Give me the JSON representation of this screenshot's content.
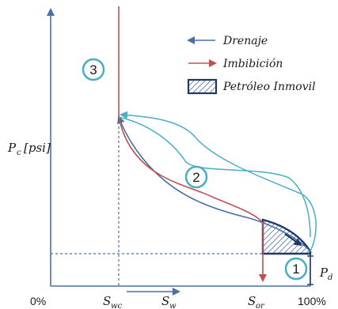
{
  "legend": {
    "drainage": "Drenaje",
    "imbibition": "Imbibición",
    "immobile_oil": "Petróleo Inmovil"
  },
  "axes": {
    "y_label_main": "P",
    "y_label_sub": "c",
    "y_label_unit": "[psi]",
    "x_tick_0": "0%",
    "x_tick_100": "100%",
    "swc_main": "S",
    "swc_sub": "wc",
    "sw_main": "S",
    "sw_sub": "w",
    "sor_main": "S",
    "sor_sub": "or",
    "pd_main": "P",
    "pd_sub": "d"
  },
  "markers": {
    "one": "1",
    "two": "2",
    "three": "3"
  },
  "colors": {
    "drainage": "#4a6fa5",
    "imbibition": "#c0504d",
    "scanning": "#4bacc6",
    "axis": "#4a6fa5",
    "oil_border": "#1f3864",
    "marker_ring": "#4bacc6"
  }
}
